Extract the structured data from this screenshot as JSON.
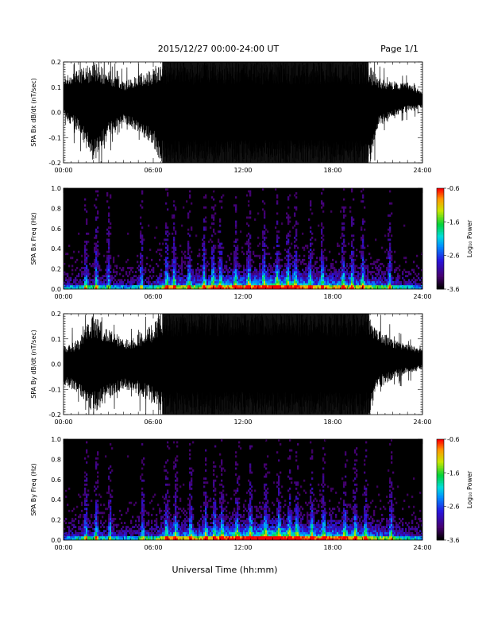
{
  "header": {
    "title": "2015/12/27  00:00-24:00 UT",
    "page": "Page 1/1"
  },
  "footer": {
    "xlabel": "Universal Time (hh:mm)"
  },
  "colorbar": {
    "label": "Log₁₀ Power",
    "ticks": [
      "-0.6",
      "-1.6",
      "-2.6",
      "-3.6"
    ],
    "range": [
      -3.6,
      -0.6
    ]
  },
  "chart_data": [
    {
      "type": "line",
      "id": "bx-dbdt",
      "ylabel": "SPA Bx dB/dt (nT/sec)",
      "xticks": [
        "00:00",
        "06:00",
        "12:00",
        "18:00",
        "24:00"
      ],
      "yticks": [
        "0.2",
        "0.1",
        "0.0",
        "-0.1",
        "-0.2"
      ],
      "xlim_hours": [
        0,
        24
      ],
      "ylim": [
        -0.2,
        0.2
      ],
      "envelope": {
        "hours": [
          0,
          1,
          2,
          3,
          4,
          5,
          6,
          6.5,
          7,
          8,
          9,
          10,
          11,
          12,
          13,
          14,
          15,
          16,
          17,
          18,
          19,
          20,
          20.5,
          21,
          22,
          23,
          24
        ],
        "high": [
          0.14,
          0.17,
          0.2,
          0.17,
          0.12,
          0.15,
          0.18,
          0.2,
          0.2,
          0.2,
          0.2,
          0.2,
          0.2,
          0.2,
          0.2,
          0.2,
          0.2,
          0.2,
          0.2,
          0.2,
          0.2,
          0.2,
          0.2,
          0.14,
          0.12,
          0.12,
          0.08
        ],
        "low": [
          -0.02,
          -0.08,
          -0.2,
          -0.1,
          -0.04,
          -0.08,
          -0.14,
          -0.2,
          -0.2,
          -0.2,
          -0.2,
          -0.2,
          -0.2,
          -0.2,
          -0.2,
          -0.2,
          -0.2,
          -0.2,
          -0.2,
          -0.2,
          -0.2,
          -0.2,
          -0.2,
          -0.06,
          -0.02,
          0.0,
          0.02
        ]
      }
    },
    {
      "type": "heatmap",
      "id": "bx-spectrogram",
      "ylabel": "SPA Bx Freq (Hz)",
      "xticks": [
        "00:00",
        "06:00",
        "12:00",
        "18:00",
        "24:00"
      ],
      "yticks": [
        "1.0",
        "0.8",
        "0.6",
        "0.4",
        "0.2",
        "0.0"
      ],
      "xlim_hours": [
        0,
        24
      ],
      "ylim": [
        0,
        1.0
      ],
      "zlabel": "Log₁₀ Power",
      "zlim": [
        -3.6,
        -0.6
      ],
      "activity": {
        "hours": [
          0,
          1,
          2,
          3,
          4,
          5,
          6,
          7,
          8,
          9,
          10,
          11,
          12,
          13,
          14,
          15,
          16,
          17,
          18,
          19,
          20,
          21,
          22,
          23,
          24
        ],
        "level": [
          0.25,
          0.35,
          0.4,
          0.3,
          0.25,
          0.3,
          0.35,
          0.6,
          0.55,
          0.55,
          0.6,
          0.7,
          0.7,
          0.75,
          0.8,
          0.8,
          0.7,
          0.6,
          0.65,
          0.6,
          0.55,
          0.5,
          0.4,
          0.3,
          0.25
        ]
      },
      "bursts_hours": [
        1.5,
        2.2,
        3.0,
        5.2,
        6.9,
        7.4,
        8.4,
        9.4,
        10.0,
        10.5,
        11.5,
        12.4,
        13.4,
        14.3,
        15.0,
        15.5,
        16.5,
        17.3,
        18.7,
        19.3,
        20.0,
        21.8
      ]
    },
    {
      "type": "line",
      "id": "by-dbdt",
      "ylabel": "SPA By dB/dt (nT/sec)",
      "xticks": [
        "00:00",
        "06:00",
        "12:00",
        "18:00",
        "24:00"
      ],
      "yticks": [
        "0.2",
        "0.1",
        "0.0",
        "-0.1",
        "-0.2"
      ],
      "xlim_hours": [
        0,
        24
      ],
      "ylim": [
        -0.2,
        0.2
      ],
      "envelope": {
        "hours": [
          0,
          1,
          2,
          3,
          4,
          5,
          6,
          6.5,
          7,
          8,
          9,
          10,
          11,
          12,
          13,
          14,
          15,
          16,
          17,
          18,
          19,
          20,
          20.5,
          21,
          22,
          23,
          24
        ],
        "high": [
          0.08,
          0.1,
          0.2,
          0.14,
          0.1,
          0.12,
          0.16,
          0.2,
          0.2,
          0.2,
          0.2,
          0.2,
          0.2,
          0.2,
          0.2,
          0.2,
          0.2,
          0.2,
          0.2,
          0.2,
          0.2,
          0.2,
          0.2,
          0.14,
          0.1,
          0.08,
          0.06
        ],
        "low": [
          -0.08,
          -0.12,
          -0.2,
          -0.14,
          -0.1,
          -0.12,
          -0.16,
          -0.2,
          -0.2,
          -0.2,
          -0.2,
          -0.2,
          -0.2,
          -0.2,
          -0.2,
          -0.2,
          -0.2,
          -0.2,
          -0.2,
          -0.2,
          -0.2,
          -0.2,
          -0.2,
          -0.1,
          -0.06,
          -0.04,
          -0.02
        ]
      }
    },
    {
      "type": "heatmap",
      "id": "by-spectrogram",
      "ylabel": "SPA By Freq (Hz)",
      "xticks": [
        "00:00",
        "06:00",
        "12:00",
        "18:00",
        "24:00"
      ],
      "yticks": [
        "1.0",
        "0.8",
        "0.6",
        "0.4",
        "0.2",
        "0.0"
      ],
      "xlim_hours": [
        0,
        24
      ],
      "ylim": [
        0,
        1.0
      ],
      "zlabel": "Log₁₀ Power",
      "zlim": [
        -3.6,
        -0.6
      ],
      "activity": {
        "hours": [
          0,
          1,
          2,
          3,
          4,
          5,
          6,
          7,
          8,
          9,
          10,
          11,
          12,
          13,
          14,
          15,
          16,
          17,
          18,
          19,
          20,
          21,
          22,
          23,
          24
        ],
        "level": [
          0.25,
          0.35,
          0.4,
          0.35,
          0.3,
          0.35,
          0.4,
          0.65,
          0.6,
          0.6,
          0.65,
          0.75,
          0.8,
          0.85,
          0.9,
          0.85,
          0.75,
          0.7,
          0.75,
          0.7,
          0.6,
          0.55,
          0.45,
          0.35,
          0.3
        ]
      },
      "bursts_hours": [
        1.5,
        2.2,
        3.1,
        5.3,
        6.9,
        7.5,
        8.5,
        9.5,
        10.1,
        10.6,
        11.6,
        12.5,
        13.5,
        14.4,
        15.1,
        15.6,
        16.6,
        17.4,
        18.8,
        19.5,
        20.2,
        21.9
      ]
    }
  ]
}
